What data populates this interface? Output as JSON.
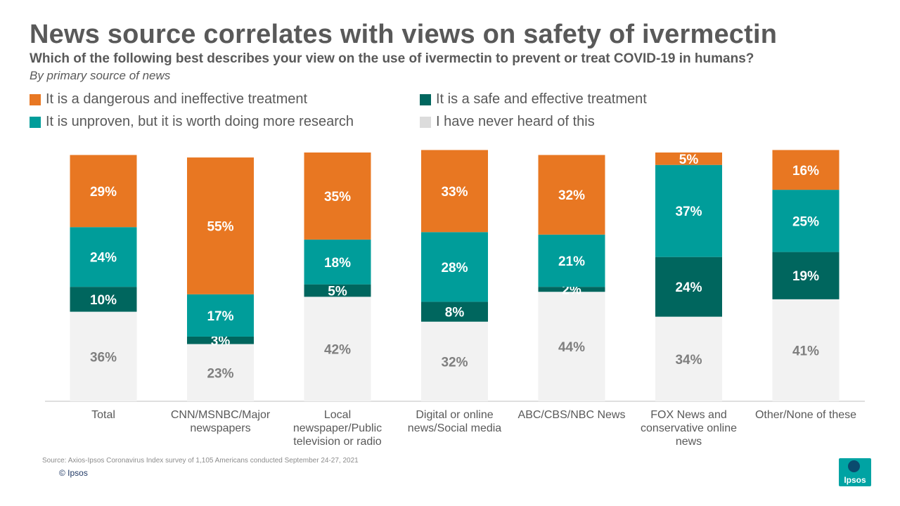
{
  "title": "News source correlates with views on safety of ivermectin",
  "subtitle": "Which of the following  best describes your view on the use of ivermectin to prevent or treat COVID-19  in humans?",
  "note": "By primary source of news",
  "source": "Source: Axios-Ipsos Coronavirus Index survey of 1,105 Americans conducted September 24-27, 2021",
  "copyright": "© Ipsos",
  "logo_text": "Ipsos",
  "legend": [
    {
      "label": "It is a dangerous  and ineffective treatment",
      "color": "#e87722"
    },
    {
      "label": "It is a safe and effective treatment",
      "color": "#00665e"
    },
    {
      "label": "It is unproven,  but it is worth doing more research",
      "color": "#009d9a"
    },
    {
      "label": "I have never heard of this",
      "color": "#dcdcdc"
    }
  ],
  "chart_data": {
    "type": "bar",
    "stacked": true,
    "orientation": "vertical",
    "unit": "%",
    "categories": [
      [
        "Total"
      ],
      [
        "CNN/MSNBC/Major",
        "newspapers"
      ],
      [
        "Local",
        "newspaper/Public",
        "television or radio"
      ],
      [
        "Digital or online",
        "news/Social media"
      ],
      [
        "ABC/CBS/NBC News"
      ],
      [
        "FOX News and",
        "conservative online",
        "news"
      ],
      [
        "Other/None of these"
      ]
    ],
    "series": [
      {
        "name": "I have never heard of this",
        "color": "#f2f2f2",
        "label_color": "#7f7f7f",
        "values": [
          36,
          23,
          42,
          32,
          44,
          34,
          41
        ]
      },
      {
        "name": "It is a safe and effective treatment",
        "color": "#00665e",
        "label_color": "#ffffff",
        "values": [
          10,
          3,
          5,
          8,
          2,
          24,
          19
        ]
      },
      {
        "name": "It is unproven, but it is worth doing more research",
        "color": "#009d9a",
        "label_color": "#ffffff",
        "values": [
          24,
          17,
          18,
          28,
          21,
          37,
          25
        ]
      },
      {
        "name": "It is a dangerous and ineffective treatment",
        "color": "#e87722",
        "label_color": "#ffffff",
        "values": [
          29,
          55,
          35,
          33,
          32,
          5,
          16
        ]
      }
    ],
    "ylim": [
      0,
      100
    ]
  }
}
